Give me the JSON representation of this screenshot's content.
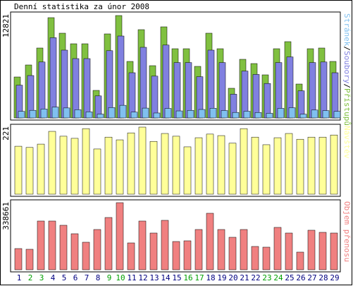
{
  "chart_data": [
    {
      "type": "bar",
      "title": "Denní statistika za únor 2008",
      "ylim": [
        0,
        12821
      ],
      "yticks": [
        12821
      ],
      "legend_separator": "/",
      "series": [
        {
          "name": "Přístupů",
          "color": "#80c040",
          "values": [
            5128,
            6632,
            8754,
            12556,
            10611,
            9284,
            9284,
            3448,
            10522,
            12821,
            7074,
            11053,
            6543,
            11406,
            8665,
            8665,
            6455,
            10611,
            8665,
            3714,
            7339,
            6808,
            5394,
            8665,
            9550,
            4244,
            8665,
            8754,
            7074
          ]
        },
        {
          "name": "Soubory",
          "color": "#8080e0",
          "values": [
            4102,
            5306,
            7003,
            10045,
            8489,
            7427,
            7427,
            2758,
            8418,
            10257,
            5659,
            8842,
            5234,
            9125,
            6932,
            6932,
            5164,
            8489,
            6932,
            2971,
            5871,
            5446,
            4315,
            6932,
            7640,
            3395,
            6932,
            7003,
            5659
          ]
        },
        {
          "name": "Stránek",
          "color": "#80c0f0",
          "values": [
            820,
            955,
            1120,
            1360,
            1250,
            1030,
            760,
            480,
            1300,
            1580,
            730,
            1230,
            620,
            1190,
            880,
            950,
            1060,
            1210,
            930,
            690,
            840,
            680,
            580,
            1200,
            1280,
            470,
            990,
            920,
            820
          ]
        }
      ]
    },
    {
      "type": "bar",
      "ylim": [
        0,
        221
      ],
      "yticks": [
        221
      ],
      "series": [
        {
          "name": "Návštěv",
          "color": "#ffff99",
          "values": [
            158,
            154,
            165,
            207,
            191,
            184,
            216,
            149,
            188,
            179,
            202,
            221,
            174,
            200,
            191,
            156,
            186,
            198,
            193,
            168,
            216,
            188,
            163,
            186,
            200,
            181,
            188,
            188,
            195
          ]
        }
      ]
    },
    {
      "type": "bar",
      "ylim": [
        0,
        338661
      ],
      "yticks": [
        338661
      ],
      "categories": [
        "1",
        "2",
        "3",
        "4",
        "5",
        "6",
        "7",
        "8",
        "9",
        "10",
        "11",
        "12",
        "13",
        "14",
        "15",
        "16",
        "17",
        "18",
        "19",
        "20",
        "21",
        "22",
        "23",
        "24",
        "25",
        "26",
        "27",
        "28",
        "29"
      ],
      "category_colors": [
        "#000080",
        "#00a000",
        "#00a000",
        "#000080",
        "#000080",
        "#000080",
        "#000080",
        "#000080",
        "#00a000",
        "#00a000",
        "#000080",
        "#000080",
        "#000080",
        "#000080",
        "#000080",
        "#00a000",
        "#00a000",
        "#000080",
        "#000080",
        "#000080",
        "#000080",
        "#000080",
        "#00a000",
        "#00a000",
        "#000080",
        "#000080",
        "#000080",
        "#000080",
        "#000080"
      ],
      "series": [
        {
          "name": "Objem přenosu",
          "color": "#f08080",
          "values": [
            106946,
            103381,
            245974,
            245974,
            224586,
            181808,
            139029,
            203197,
            263798,
            338661,
            135464,
            245974,
            185373,
            249539,
            142594,
            146159,
            203197,
            285188,
            203197,
            163982,
            203197,
            117640,
            114076,
            213892,
            185373,
            89121,
            199632,
            188937,
            185373
          ]
        }
      ]
    }
  ]
}
